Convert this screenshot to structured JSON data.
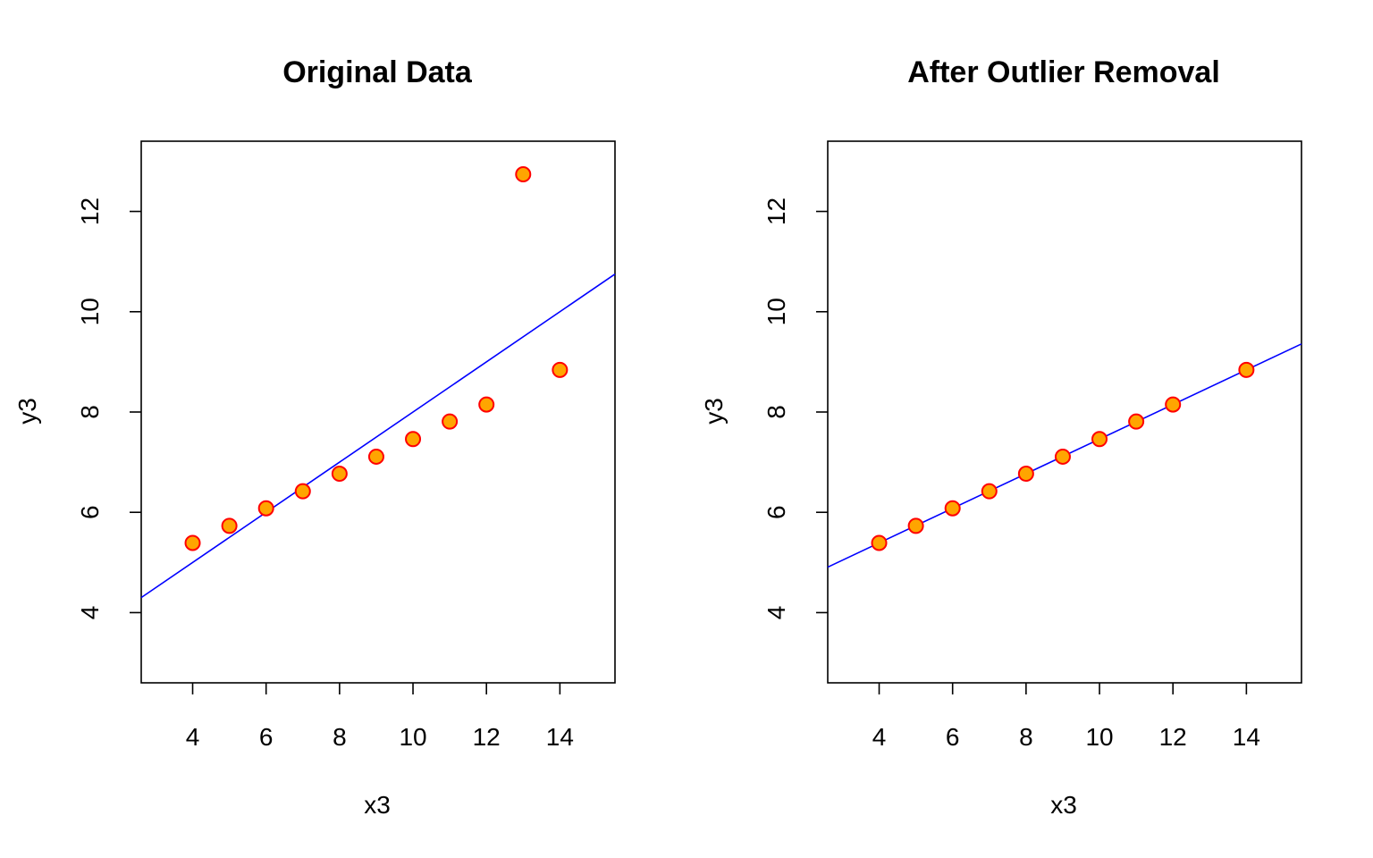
{
  "chart_data": [
    {
      "type": "scatter",
      "title": "Original Data",
      "xlabel": "x3",
      "ylabel": "y3",
      "xlim": [
        2.6,
        15.5
      ],
      "ylim": [
        2.6,
        13.4
      ],
      "xticks": [
        4,
        6,
        8,
        10,
        12,
        14
      ],
      "yticks": [
        4,
        6,
        8,
        10,
        12
      ],
      "grid": false,
      "point_fill": "#FFA500",
      "point_stroke": "#FF0000",
      "line_color": "#0000FF",
      "series": [
        {
          "x": [
            4,
            5,
            6,
            7,
            8,
            9,
            10,
            11,
            12,
            13,
            14
          ],
          "y": [
            5.39,
            5.73,
            6.08,
            6.42,
            6.77,
            7.11,
            7.46,
            7.81,
            8.15,
            12.74,
            8.84
          ]
        }
      ],
      "fit_line": {
        "intercept": 3.0,
        "slope": 0.5
      }
    },
    {
      "type": "scatter",
      "title": "After Outlier Removal",
      "xlabel": "x3",
      "ylabel": "y3",
      "xlim": [
        2.6,
        15.5
      ],
      "ylim": [
        2.6,
        13.4
      ],
      "xticks": [
        4,
        6,
        8,
        10,
        12,
        14
      ],
      "yticks": [
        4,
        6,
        8,
        10,
        12
      ],
      "grid": false,
      "point_fill": "#FFA500",
      "point_stroke": "#FF0000",
      "line_color": "#0000FF",
      "series": [
        {
          "x": [
            4,
            5,
            6,
            7,
            8,
            9,
            10,
            11,
            12,
            14
          ],
          "y": [
            5.39,
            5.73,
            6.08,
            6.42,
            6.77,
            7.11,
            7.46,
            7.81,
            8.15,
            8.84
          ]
        }
      ],
      "fit_line": {
        "intercept": 4.01,
        "slope": 0.345
      }
    }
  ]
}
